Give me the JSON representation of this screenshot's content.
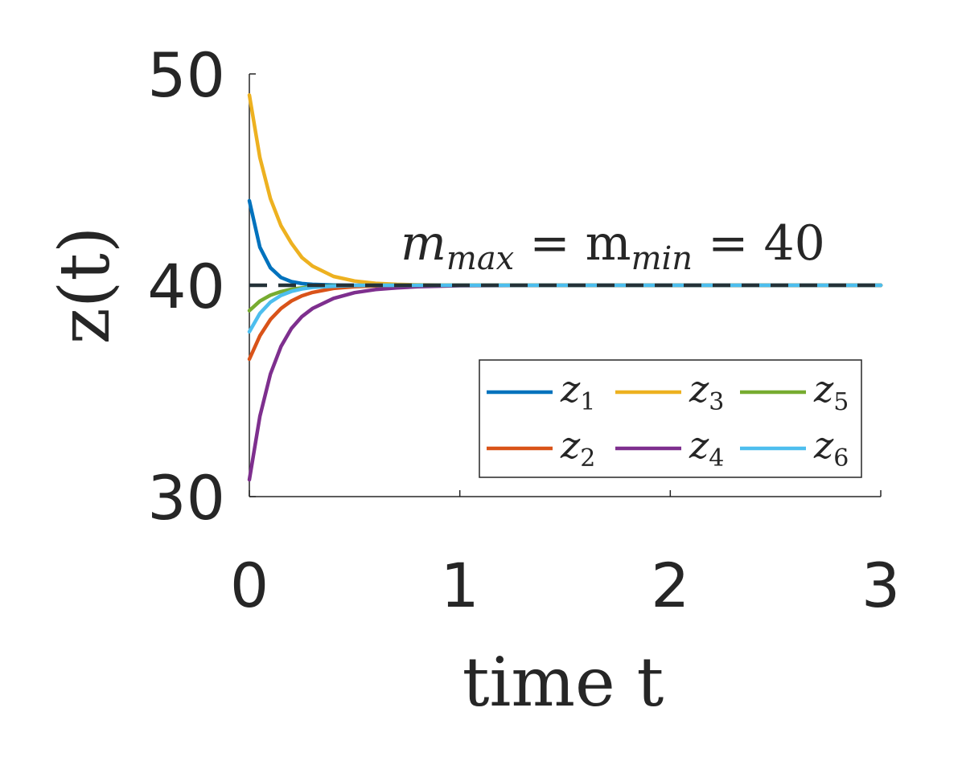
{
  "chart_data": {
    "type": "line",
    "xlabel": "time t",
    "ylabel": "z(t)",
    "xlim": [
      0,
      3
    ],
    "ylim": [
      30,
      50
    ],
    "xticks": [
      0,
      1,
      2,
      3
    ],
    "yticks": [
      30,
      40,
      50
    ],
    "grid": false,
    "legend_placement": "bottom-right",
    "annotation": {
      "text_parts": [
        "m",
        "max",
        " = m",
        "min",
        " = 40"
      ],
      "reference_value": 40
    },
    "x": [
      0,
      0.05,
      0.1,
      0.15,
      0.2,
      0.25,
      0.3,
      0.4,
      0.5,
      0.6,
      0.7,
      0.8,
      1.0,
      1.5,
      2.0,
      2.5,
      3.0
    ],
    "series": [
      {
        "name": "z",
        "sub": "1",
        "color": "#0072BD",
        "values": [
          44.0,
          41.8,
          40.83,
          40.37,
          40.17,
          40.08,
          40.04,
          40.01,
          40.0,
          40.0,
          40.0,
          40.0,
          40.0,
          40.0,
          40.0,
          40.0,
          40.0
        ]
      },
      {
        "name": "z",
        "sub": "2",
        "color": "#D95319",
        "values": [
          36.5,
          37.61,
          38.38,
          38.9,
          39.26,
          39.5,
          39.66,
          39.85,
          39.93,
          39.97,
          39.99,
          39.99,
          40.0,
          40.0,
          40.0,
          40.0,
          40.0
        ]
      },
      {
        "name": "z",
        "sub": "3",
        "color": "#EDB120",
        "values": [
          49.0,
          46.04,
          44.1,
          42.82,
          41.99,
          41.31,
          40.91,
          40.42,
          40.2,
          40.09,
          40.04,
          40.02,
          40.0,
          40.0,
          40.0,
          40.0,
          40.0
        ]
      },
      {
        "name": "z",
        "sub": "4",
        "color": "#7E2F8E",
        "values": [
          30.8,
          33.8,
          35.8,
          37.1,
          37.96,
          38.52,
          38.9,
          39.38,
          39.65,
          39.8,
          39.88,
          39.93,
          39.98,
          40.0,
          40.0,
          40.0,
          40.0
        ]
      },
      {
        "name": "z",
        "sub": "5",
        "color": "#77AC30",
        "values": [
          38.8,
          39.25,
          39.53,
          39.7,
          39.81,
          39.88,
          39.93,
          39.97,
          39.99,
          40.0,
          40.0,
          40.0,
          40.0,
          40.0,
          40.0,
          40.0,
          40.0
        ]
      },
      {
        "name": "z",
        "sub": "6",
        "color": "#4DBEEE",
        "values": [
          37.8,
          38.67,
          39.2,
          39.52,
          39.71,
          39.83,
          39.9,
          39.96,
          39.99,
          40.0,
          40.0,
          40.0,
          40.0,
          40.0,
          40.0,
          40.0,
          40.0
        ]
      }
    ]
  }
}
